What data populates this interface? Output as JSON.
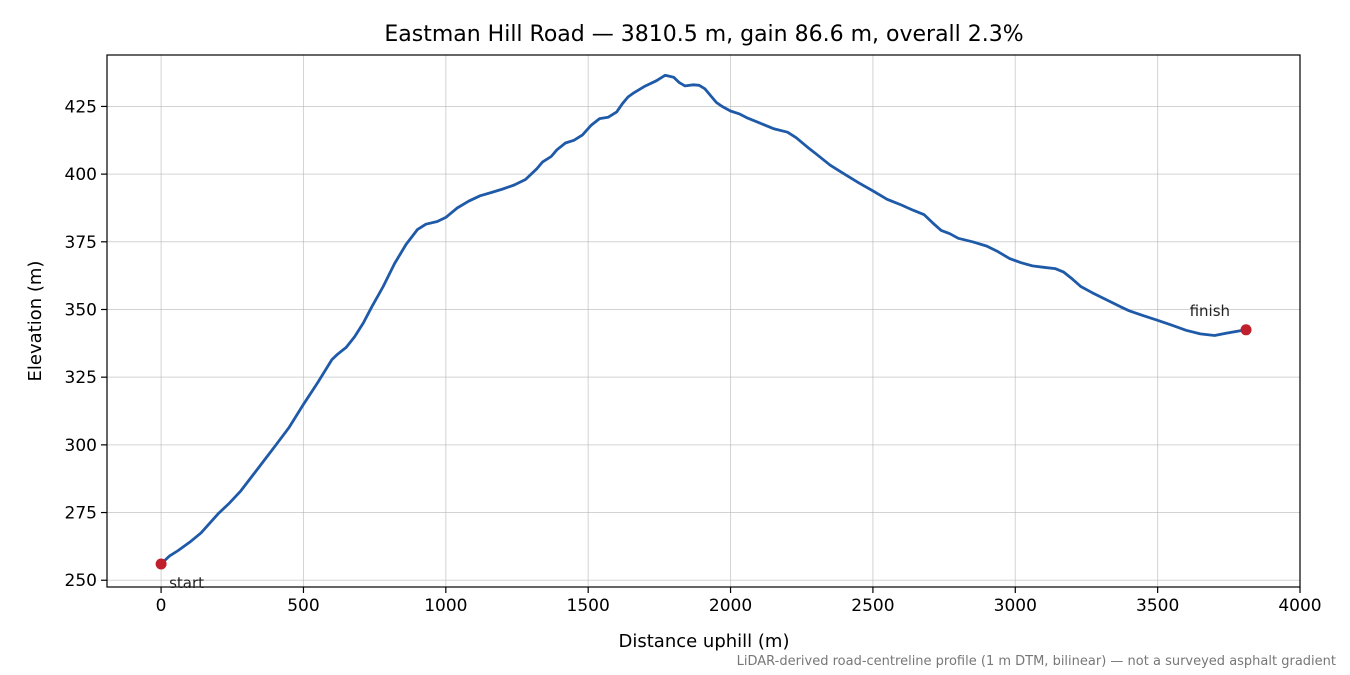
{
  "chart_data": {
    "type": "line",
    "title": "Eastman Hill Road — 3810.5 m, gain 86.6 m, overall 2.3%",
    "xlabel": "Distance uphill (m)",
    "ylabel": "Elevation (m)",
    "xlim": [
      -190,
      4000
    ],
    "ylim": [
      247.5,
      444
    ],
    "xticks": [
      0,
      500,
      1000,
      1500,
      2000,
      2500,
      3000,
      3500,
      4000
    ],
    "yticks": [
      250,
      275,
      300,
      325,
      350,
      375,
      400,
      425
    ],
    "grid": true,
    "line_color": "#1f5aa8",
    "marker_color": "#c0202c",
    "series": [
      {
        "x": [
          0,
          30,
          60,
          100,
          140,
          170,
          200,
          240,
          280,
          320,
          360,
          400,
          450,
          500,
          550,
          600,
          620,
          650,
          680,
          710,
          740,
          780,
          820,
          860,
          900,
          930,
          970,
          1000,
          1040,
          1080,
          1120,
          1160,
          1200,
          1240,
          1280,
          1320,
          1340,
          1370,
          1390,
          1420,
          1450,
          1480,
          1510,
          1540,
          1570,
          1600,
          1620,
          1640,
          1660,
          1700,
          1740,
          1770,
          1800,
          1820,
          1840,
          1870,
          1890,
          1910,
          1930,
          1950,
          1970,
          2000,
          2030,
          2060,
          2100,
          2150,
          2200,
          2230,
          2270,
          2300,
          2350,
          2400,
          2450,
          2500,
          2550,
          2600,
          2640,
          2680,
          2710,
          2740,
          2770,
          2800,
          2850,
          2900,
          2940,
          2980,
          3020,
          3060,
          3100,
          3140,
          3170,
          3200,
          3230,
          3270,
          3320,
          3370,
          3400,
          3450,
          3500,
          3550,
          3600,
          3650,
          3700,
          3740,
          3780,
          3810
        ],
        "y": [
          256,
          259,
          261,
          264,
          267.5,
          271,
          274.5,
          278.5,
          283,
          288.5,
          294,
          299.5,
          306.5,
          315,
          323,
          331.5,
          333.5,
          336,
          340,
          345,
          351,
          358.5,
          367,
          374,
          379.5,
          381.5,
          382.5,
          384,
          387.5,
          390,
          392,
          393.2,
          394.5,
          396,
          398,
          402,
          404.5,
          406.5,
          409,
          411.5,
          412.5,
          414.5,
          418,
          420.5,
          421,
          423,
          426,
          428.5,
          430,
          432.5,
          434.5,
          436.5,
          435.8,
          433.8,
          432.6,
          433,
          432.8,
          431.5,
          429,
          426.5,
          425,
          423.3,
          422.3,
          420.7,
          419,
          416.8,
          415.5,
          413.5,
          410,
          407.5,
          403.3,
          400,
          396.8,
          393.8,
          390.7,
          388.6,
          386.7,
          385,
          382,
          379.2,
          378,
          376.3,
          375,
          373.4,
          371.3,
          368.8,
          367.3,
          366.1,
          365.6,
          365.1,
          363.8,
          361.3,
          358.5,
          356.2,
          353.6,
          351,
          349.5,
          347.7,
          346,
          344.2,
          342.3,
          341,
          340.4,
          341.2,
          342,
          342.5
        ]
      }
    ],
    "annotations": [
      {
        "text": "start",
        "x": 0,
        "y": 256
      },
      {
        "text": "finish",
        "x": 3810.5,
        "y": 342.5
      }
    ],
    "footnote": "LiDAR-derived road-centreline profile (1 m DTM, bilinear) — not a surveyed asphalt gradient"
  }
}
